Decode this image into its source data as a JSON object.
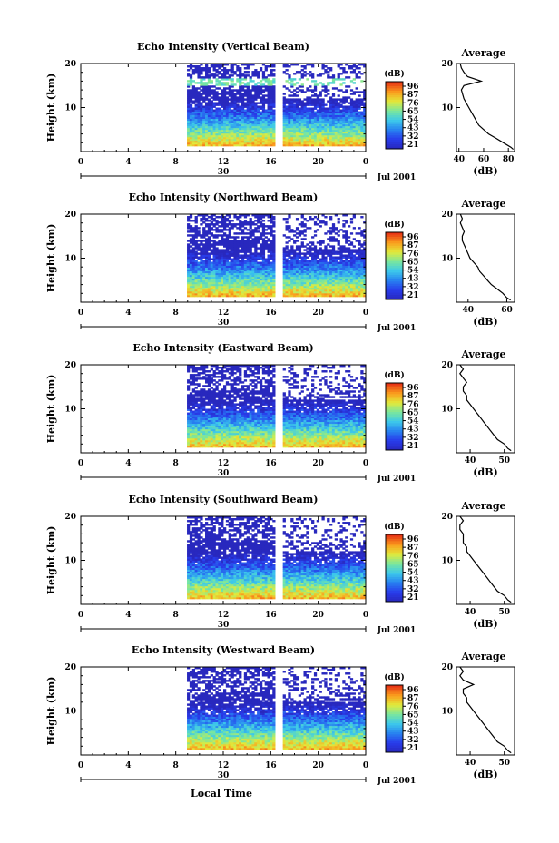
{
  "figure": {
    "panels": [
      {
        "title": "Echo Intensity (Vertical Beam)",
        "avg_title": "Average",
        "avg_xticks": [
          "40",
          "60",
          "80"
        ],
        "avg_xlabel": "(dB)",
        "ylabel": "Height (km)",
        "yticks": [
          "20",
          "10"
        ],
        "xticks": [
          "0",
          "4",
          "8",
          "12",
          "16",
          "20",
          "0"
        ],
        "date_day": "30",
        "date_label": "Jul 2001",
        "cb_title": "(dB)",
        "cb_ticks": [
          "96",
          "87",
          "76",
          "65",
          "54",
          "43",
          "32",
          "21"
        ]
      },
      {
        "title": "Echo Intensity (Northward Beam)",
        "avg_title": "Average",
        "avg_xticks": [
          "40",
          "60"
        ],
        "avg_xlabel": "(dB)",
        "ylabel": "Height (km)",
        "yticks": [
          "20",
          "10"
        ],
        "xticks": [
          "0",
          "4",
          "8",
          "12",
          "16",
          "20",
          "0"
        ],
        "date_day": "30",
        "date_label": "Jul 2001",
        "cb_title": "(dB)",
        "cb_ticks": [
          "96",
          "87",
          "76",
          "65",
          "54",
          "43",
          "32",
          "21"
        ]
      },
      {
        "title": "Echo Intensity (Eastward Beam)",
        "avg_title": "Average",
        "avg_xticks": [
          "40",
          "50"
        ],
        "avg_xlabel": "(dB)",
        "ylabel": "Height (km)",
        "yticks": [
          "20",
          "10"
        ],
        "xticks": [
          "0",
          "4",
          "8",
          "12",
          "16",
          "20",
          "0"
        ],
        "date_day": "30",
        "date_label": "Jul 2001",
        "cb_title": "(dB)",
        "cb_ticks": [
          "96",
          "87",
          "76",
          "65",
          "54",
          "43",
          "32",
          "21"
        ]
      },
      {
        "title": "Echo Intensity (Southward Beam)",
        "avg_title": "Average",
        "avg_xticks": [
          "40",
          "50"
        ],
        "avg_xlabel": "(dB)",
        "ylabel": "Height (km)",
        "yticks": [
          "20",
          "10"
        ],
        "xticks": [
          "0",
          "4",
          "8",
          "12",
          "16",
          "20",
          "0"
        ],
        "date_day": "30",
        "date_label": "Jul 2001",
        "cb_title": "(dB)",
        "cb_ticks": [
          "96",
          "87",
          "76",
          "65",
          "54",
          "43",
          "32",
          "21"
        ]
      },
      {
        "title": "Echo Intensity (Westward Beam)",
        "avg_title": "Average",
        "avg_xticks": [
          "40",
          "50"
        ],
        "avg_xlabel": "(dB)",
        "ylabel": "Height (km)",
        "yticks": [
          "20",
          "10"
        ],
        "xticks": [
          "0",
          "4",
          "8",
          "12",
          "16",
          "20",
          "0"
        ],
        "date_day": "30",
        "date_label": "Jul 2001",
        "cb_title": "(dB)",
        "cb_ticks": [
          "96",
          "87",
          "76",
          "65",
          "54",
          "43",
          "32",
          "21"
        ]
      }
    ],
    "xlabel_bottom": "Local Time"
  },
  "chart_data": [
    {
      "type": "heatmap",
      "title": "Echo Intensity (Vertical Beam)",
      "xlabel": "",
      "ylabel": "Height (km)",
      "xlim": [
        0,
        24
      ],
      "ylim": [
        0,
        20
      ],
      "x_tick_labels": [
        "0",
        "4",
        "8",
        "12",
        "16",
        "20",
        "0"
      ],
      "data_gaps_hours": [
        [
          0,
          9
        ],
        [
          16.3,
          17
        ]
      ],
      "colorbar": {
        "title": "(dB)",
        "ticks": [
          96,
          87,
          76,
          65,
          54,
          43,
          32,
          21
        ],
        "range": [
          21,
          96
        ]
      },
      "profile": {
        "title": "Average",
        "xlabel": "(dB)",
        "xlim": [
          38,
          85
        ],
        "height_km": [
          0.5,
          1,
          2,
          3,
          4,
          5,
          6,
          7,
          8,
          9,
          10,
          11,
          12,
          13,
          14,
          15,
          16,
          17,
          18,
          19,
          20
        ],
        "values_db": [
          84,
          82,
          76,
          70,
          64,
          60,
          56,
          54,
          52,
          50,
          48,
          46,
          44,
          43,
          42,
          44,
          58,
          47,
          44,
          42,
          41
        ]
      }
    },
    {
      "type": "heatmap",
      "title": "Echo Intensity (Northward Beam)",
      "xlabel": "",
      "ylabel": "Height (km)",
      "xlim": [
        0,
        24
      ],
      "ylim": [
        0,
        20
      ],
      "x_tick_labels": [
        "0",
        "4",
        "8",
        "12",
        "16",
        "20",
        "0"
      ],
      "data_gaps_hours": [
        [
          0,
          9
        ],
        [
          16.3,
          17
        ]
      ],
      "colorbar": {
        "title": "(dB)",
        "ticks": [
          96,
          87,
          76,
          65,
          54,
          43,
          32,
          21
        ],
        "range": [
          21,
          96
        ]
      },
      "profile": {
        "title": "Average",
        "xlabel": "(dB)",
        "xlim": [
          34,
          64
        ],
        "height_km": [
          0.5,
          1,
          2,
          3,
          4,
          5,
          6,
          7,
          8,
          9,
          10,
          11,
          12,
          13,
          14,
          15,
          16,
          17,
          18,
          19,
          20
        ],
        "values_db": [
          62,
          60,
          58,
          55,
          52,
          50,
          48,
          46,
          45,
          43,
          41,
          40,
          39,
          38,
          37,
          37,
          38,
          37,
          36,
          37,
          36
        ]
      }
    },
    {
      "type": "heatmap",
      "title": "Echo Intensity (Eastward Beam)",
      "xlabel": "",
      "ylabel": "Height (km)",
      "xlim": [
        0,
        24
      ],
      "ylim": [
        0,
        20
      ],
      "x_tick_labels": [
        "0",
        "4",
        "8",
        "12",
        "16",
        "20",
        "0"
      ],
      "data_gaps_hours": [
        [
          0,
          9
        ],
        [
          16.3,
          17
        ]
      ],
      "colorbar": {
        "title": "(dB)",
        "ticks": [
          96,
          87,
          76,
          65,
          54,
          43,
          32,
          21
        ],
        "range": [
          21,
          96
        ]
      },
      "profile": {
        "title": "Average",
        "xlabel": "(dB)",
        "xlim": [
          36,
          53
        ],
        "height_km": [
          0.5,
          1,
          2,
          3,
          4,
          5,
          6,
          7,
          8,
          9,
          10,
          11,
          12,
          13,
          14,
          15,
          16,
          17,
          18,
          19,
          20
        ],
        "values_db": [
          52,
          51,
          50,
          48,
          47,
          46,
          45,
          44,
          43,
          42,
          41,
          40,
          39,
          39,
          38,
          38,
          39,
          38,
          37,
          38,
          37
        ]
      }
    },
    {
      "type": "heatmap",
      "title": "Echo Intensity (Southward Beam)",
      "xlabel": "",
      "ylabel": "Height (km)",
      "xlim": [
        0,
        24
      ],
      "ylim": [
        0,
        20
      ],
      "x_tick_labels": [
        "0",
        "4",
        "8",
        "12",
        "16",
        "20",
        "0"
      ],
      "data_gaps_hours": [
        [
          0,
          9
        ],
        [
          16.3,
          17
        ]
      ],
      "colorbar": {
        "title": "(dB)",
        "ticks": [
          96,
          87,
          76,
          65,
          54,
          43,
          32,
          21
        ],
        "range": [
          21,
          96
        ]
      },
      "profile": {
        "title": "Average",
        "xlabel": "(dB)",
        "xlim": [
          36,
          53
        ],
        "height_km": [
          0.5,
          1,
          2,
          3,
          4,
          5,
          6,
          7,
          8,
          9,
          10,
          11,
          12,
          13,
          14,
          15,
          16,
          17,
          18,
          19,
          20
        ],
        "values_db": [
          52,
          51,
          50,
          48,
          47,
          46,
          45,
          44,
          43,
          42,
          41,
          40,
          39,
          39,
          38,
          38,
          38,
          37,
          37,
          38,
          37
        ]
      }
    },
    {
      "type": "heatmap",
      "title": "Echo Intensity (Westward Beam)",
      "xlabel": "Local Time",
      "ylabel": "Height (km)",
      "xlim": [
        0,
        24
      ],
      "ylim": [
        0,
        20
      ],
      "x_tick_labels": [
        "0",
        "4",
        "8",
        "12",
        "16",
        "20",
        "0"
      ],
      "data_gaps_hours": [
        [
          0,
          9
        ],
        [
          16.3,
          17
        ]
      ],
      "colorbar": {
        "title": "(dB)",
        "ticks": [
          96,
          87,
          76,
          65,
          54,
          43,
          32,
          21
        ],
        "range": [
          21,
          96
        ]
      },
      "profile": {
        "title": "Average",
        "xlabel": "(dB)",
        "xlim": [
          36,
          53
        ],
        "height_km": [
          0.5,
          1,
          2,
          3,
          4,
          5,
          6,
          7,
          8,
          9,
          10,
          11,
          12,
          13,
          14,
          15,
          16,
          17,
          18,
          19,
          20
        ],
        "values_db": [
          52,
          51,
          50,
          48,
          47,
          46,
          45,
          44,
          43,
          42,
          41,
          40,
          39,
          39,
          38,
          38,
          41,
          38,
          37,
          38,
          37
        ]
      }
    }
  ]
}
